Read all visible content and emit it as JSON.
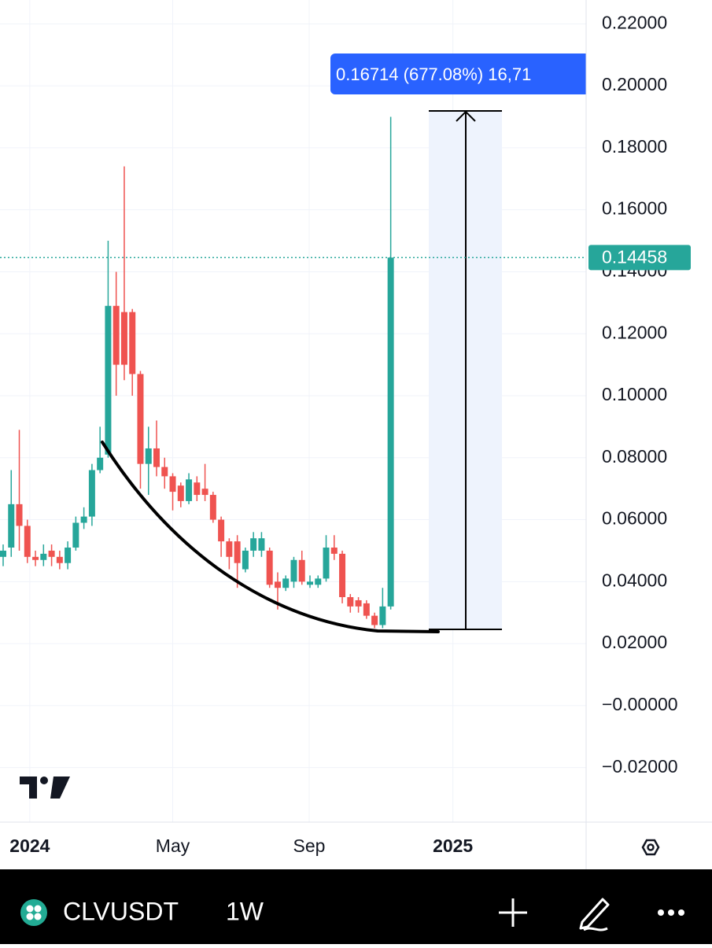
{
  "chart_data": {
    "type": "candlestick",
    "symbol": "CLVUSDT",
    "interval": "1W",
    "up_color": "#26a69a",
    "down_color": "#ef5350",
    "x": [
      0,
      1,
      2,
      3,
      4,
      5,
      6,
      7,
      8,
      9,
      10,
      11,
      12,
      13,
      14,
      15,
      16,
      17,
      18,
      19,
      20,
      21,
      22,
      23,
      24,
      25,
      26,
      27,
      28,
      29,
      30,
      31,
      32,
      33,
      34,
      35,
      36,
      37,
      38,
      39,
      40,
      41,
      42,
      43,
      44,
      45,
      46,
      47,
      48
    ],
    "open": [
      0.048,
      0.051,
      0.065,
      0.058,
      0.048,
      0.047,
      0.05,
      0.048,
      0.046,
      0.051,
      0.059,
      0.061,
      0.076,
      0.081,
      0.129,
      0.127,
      0.127,
      0.107,
      0.078,
      0.083,
      0.077,
      0.074,
      0.071,
      0.066,
      0.072,
      0.07,
      0.068,
      0.06,
      0.053,
      0.053,
      0.044,
      0.05,
      0.05,
      0.05,
      0.04,
      0.038,
      0.04,
      0.047,
      0.039,
      0.039,
      0.041,
      0.051,
      0.049,
      0.035,
      0.034,
      0.033,
      0.029,
      0.026,
      0.032
    ],
    "high": [
      0.052,
      0.076,
      0.089,
      0.06,
      0.05,
      0.052,
      0.052,
      0.05,
      0.053,
      0.061,
      0.064,
      0.078,
      0.09,
      0.15,
      0.14,
      0.174,
      0.128,
      0.108,
      0.09,
      0.092,
      0.08,
      0.075,
      0.072,
      0.075,
      0.074,
      0.078,
      0.069,
      0.061,
      0.054,
      0.055,
      0.051,
      0.056,
      0.056,
      0.051,
      0.043,
      0.042,
      0.048,
      0.05,
      0.042,
      0.042,
      0.055,
      0.055,
      0.05,
      0.036,
      0.035,
      0.034,
      0.03,
      0.038,
      0.19
    ],
    "low": [
      0.045,
      0.048,
      0.05,
      0.046,
      0.045,
      0.045,
      0.045,
      0.044,
      0.044,
      0.05,
      0.057,
      0.058,
      0.075,
      0.08,
      0.1,
      0.105,
      0.1,
      0.07,
      0.068,
      0.074,
      0.07,
      0.063,
      0.064,
      0.065,
      0.066,
      0.066,
      0.059,
      0.048,
      0.044,
      0.038,
      0.043,
      0.048,
      0.048,
      0.038,
      0.031,
      0.037,
      0.038,
      0.039,
      0.038,
      0.038,
      0.04,
      0.047,
      0.033,
      0.03,
      0.03,
      0.028,
      0.025,
      0.025,
      0.031
    ],
    "close": [
      0.05,
      0.065,
      0.058,
      0.048,
      0.047,
      0.049,
      0.048,
      0.046,
      0.051,
      0.059,
      0.061,
      0.076,
      0.08,
      0.129,
      0.11,
      0.11,
      0.107,
      0.078,
      0.083,
      0.077,
      0.074,
      0.069,
      0.066,
      0.073,
      0.068,
      0.068,
      0.06,
      0.053,
      0.048,
      0.046,
      0.05,
      0.054,
      0.054,
      0.039,
      0.038,
      0.041,
      0.047,
      0.04,
      0.04,
      0.041,
      0.051,
      0.049,
      0.035,
      0.032,
      0.032,
      0.029,
      0.026,
      0.032,
      0.14458
    ],
    "last_price": 0.14458,
    "measure_label": "0.16714 (677.08%) 16,71",
    "xlim": [
      -0.39,
      72.2
    ],
    "xticks": [
      {
        "value": 3.3,
        "label": "2024"
      },
      {
        "value": 21.0,
        "label": "May"
      },
      {
        "value": 37.9,
        "label": "Sep"
      },
      {
        "value": 55.7,
        "label": "2025"
      }
    ],
    "ylim": [
      -0.0376,
      0.2277
    ],
    "yticks": [
      {
        "value": 0.22,
        "label": "0.22000"
      },
      {
        "value": 0.2,
        "label": "0.20000"
      },
      {
        "value": 0.18,
        "label": "0.18000"
      },
      {
        "value": 0.16,
        "label": "0.16000"
      },
      {
        "value": 0.14,
        "label": "0.14000"
      },
      {
        "value": 0.12,
        "label": "0.12000"
      },
      {
        "value": 0.1,
        "label": "0.10000"
      },
      {
        "value": 0.08,
        "label": "0.08000"
      },
      {
        "value": 0.06,
        "label": "0.06000"
      },
      {
        "value": 0.04,
        "label": "0.04000"
      },
      {
        "value": 0.02,
        "label": "0.02000"
      },
      {
        "value": 0,
        "label": "−0.00000"
      },
      {
        "value": -0.02,
        "label": "−0.02000"
      }
    ],
    "grid": true
  }
}
